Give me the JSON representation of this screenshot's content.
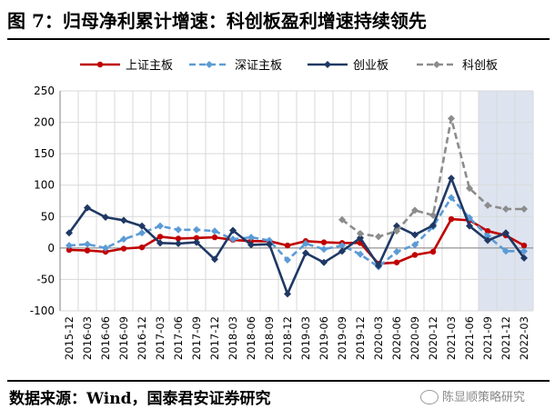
{
  "title": "图 7：归母净利累计增速：科创板盈利增速持续领先",
  "source": "数据来源：Wind，国泰君安证券研究",
  "watermark": "陈显顺策略研究",
  "colors": {
    "shanghai_main": "#c00000",
    "shenzhen_main": "#5b9bd5",
    "chinext": "#1f3864",
    "star": "#8c8c8c",
    "shade": "#dde4f0",
    "grid": "#d9d9d9"
  },
  "chart_data": {
    "type": "line",
    "x": [
      "2015-12",
      "2016-03",
      "2016-06",
      "2016-09",
      "2016-12",
      "2017-03",
      "2017-06",
      "2017-09",
      "2017-12",
      "2018-03",
      "2018-06",
      "2018-09",
      "2018-12",
      "2019-03",
      "2019-06",
      "2019-09",
      "2019-12",
      "2020-03",
      "2020-06",
      "2020-09",
      "2020-12",
      "2021-03",
      "2021-06",
      "2021-09",
      "2021-12",
      "2022-03"
    ],
    "ylim": [
      -100,
      250
    ],
    "yticks": [
      -100,
      -50,
      0,
      50,
      100,
      150,
      200,
      250
    ],
    "grid": true,
    "legend_position": "top",
    "shaded_range": [
      "2021-09",
      "2022-03"
    ],
    "series": [
      {
        "name": "上证主板",
        "color": "#c00000",
        "style": "solid",
        "marker": "circle",
        "values": [
          -3,
          -4,
          -6,
          -1,
          1,
          18,
          15,
          16,
          17,
          13,
          11,
          11,
          4,
          11,
          9,
          8,
          8,
          -25,
          -23,
          -11,
          -6,
          46,
          44,
          27,
          20,
          4
        ]
      },
      {
        "name": "深证主板",
        "color": "#5b9bd5",
        "style": "dashed",
        "marker": "diamond",
        "values": [
          4,
          6,
          0,
          14,
          24,
          35,
          29,
          29,
          27,
          14,
          17,
          12,
          -19,
          7,
          -2,
          4,
          -10,
          -30,
          -6,
          5,
          34,
          80,
          48,
          19,
          -5,
          -5
        ]
      },
      {
        "name": "创业板",
        "color": "#1f3864",
        "style": "solid",
        "marker": "diamond",
        "values": [
          24,
          64,
          49,
          44,
          35,
          8,
          7,
          9,
          -18,
          28,
          5,
          6,
          -73,
          -8,
          -23,
          -5,
          16,
          -28,
          35,
          21,
          36,
          111,
          35,
          12,
          24,
          -16
        ]
      },
      {
        "name": "科创板",
        "color": "#8c8c8c",
        "style": "dashed",
        "marker": "diamond",
        "values": [
          null,
          null,
          null,
          null,
          null,
          null,
          null,
          null,
          null,
          null,
          null,
          null,
          null,
          null,
          null,
          45,
          23,
          18,
          27,
          60,
          52,
          206,
          95,
          68,
          62,
          62
        ]
      }
    ]
  }
}
